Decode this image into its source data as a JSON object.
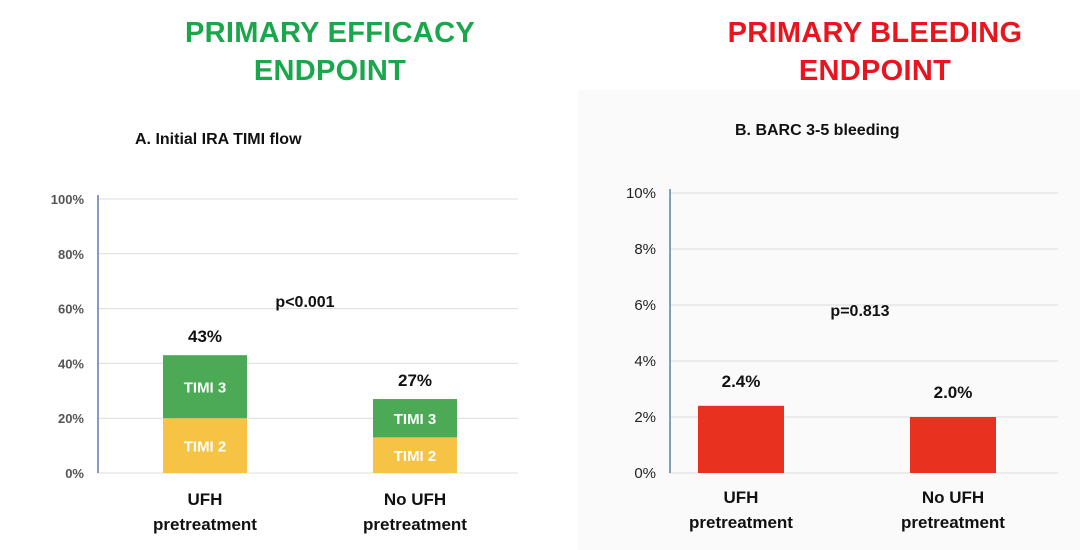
{
  "headings": {
    "efficacy": [
      "PRIMARY EFFICACY",
      "ENDPOINT"
    ],
    "bleeding": [
      "PRIMARY BLEEDING",
      "ENDPOINT"
    ]
  },
  "colors": {
    "efficacy_heading": "#1aa64b",
    "bleeding_heading": "#e8141e",
    "timi3": "#4caa57",
    "timi2": "#f6c344",
    "bleeding_bar": "#e8311f",
    "grid": "#dcdcdc",
    "axis": "#5a7fae"
  },
  "chart_data": [
    {
      "type": "bar",
      "stacked": true,
      "title": "A. Initial IRA TIMI flow",
      "categories": [
        "UFH pretreatment",
        "No UFH pretreatment"
      ],
      "category_lines": [
        [
          "UFH",
          "pretreatment"
        ],
        [
          "No UFH",
          "pretreatment"
        ]
      ],
      "series": [
        {
          "name": "TIMI 2",
          "values": [
            20,
            13
          ]
        },
        {
          "name": "TIMI 3",
          "values": [
            23,
            14
          ]
        }
      ],
      "totals": [
        43,
        27
      ],
      "total_labels": [
        "43%",
        "27%"
      ],
      "annotation": "p<0.001",
      "ylim": [
        0,
        100
      ],
      "yticks": [
        0,
        20,
        40,
        60,
        80,
        100
      ],
      "ytick_labels": [
        "0%",
        "20%",
        "40%",
        "60%",
        "80%",
        "100%"
      ],
      "grid": true,
      "xlabel": "",
      "ylabel": ""
    },
    {
      "type": "bar",
      "title": "B. BARC 3-5 bleeding",
      "categories": [
        "UFH pretreatment",
        "No UFH pretreatment"
      ],
      "category_lines": [
        [
          "UFH",
          "pretreatment"
        ],
        [
          "No UFH",
          "pretreatment"
        ]
      ],
      "values": [
        2.4,
        2.0
      ],
      "value_labels": [
        "2.4%",
        "2.0%"
      ],
      "annotation": "p=0.813",
      "ylim": [
        0,
        10
      ],
      "yticks": [
        0,
        2,
        4,
        6,
        8,
        10
      ],
      "ytick_labels": [
        "0%",
        "2%",
        "4%",
        "6%",
        "8%",
        "10%"
      ],
      "grid": true,
      "xlabel": "",
      "ylabel": ""
    }
  ]
}
